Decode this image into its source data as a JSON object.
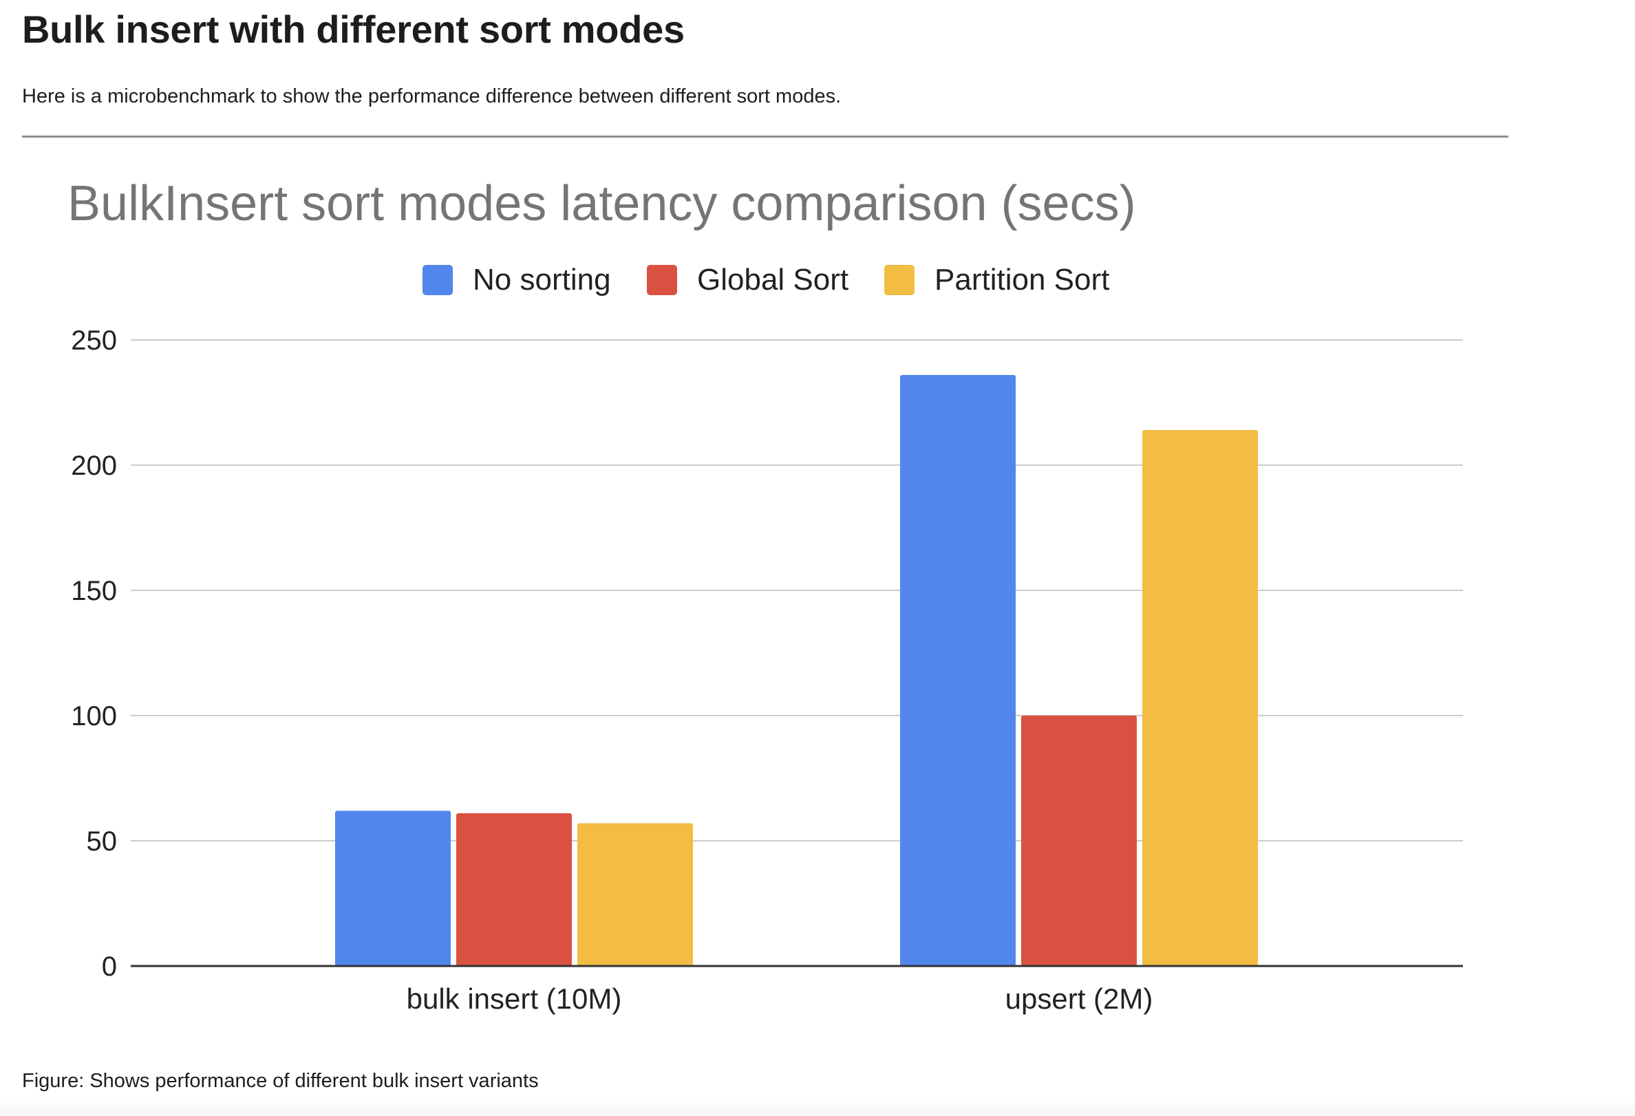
{
  "page": {
    "title": "Bulk insert with different sort modes",
    "intro": "Here is a microbenchmark to show the performance difference between different sort modes.",
    "caption": "Figure: Shows performance of different bulk insert variants"
  },
  "chart_data": {
    "type": "bar",
    "title": "BulkInsert sort modes latency comparison (secs)",
    "xlabel": "",
    "ylabel": "",
    "categories": [
      "bulk insert (10M)",
      "upsert (2M)"
    ],
    "series": [
      {
        "name": "No sorting",
        "color": "#5186ec",
        "values": [
          62,
          236
        ]
      },
      {
        "name": "Global Sort",
        "color": "#d95140",
        "values": [
          61,
          100
        ]
      },
      {
        "name": "Partition Sort",
        "color": "#f2bd42",
        "values": [
          57,
          214
        ]
      }
    ],
    "ylim": [
      0,
      250
    ],
    "yticks": [
      0,
      50,
      100,
      150,
      200,
      250
    ],
    "grid": true,
    "legend_position": "top"
  }
}
